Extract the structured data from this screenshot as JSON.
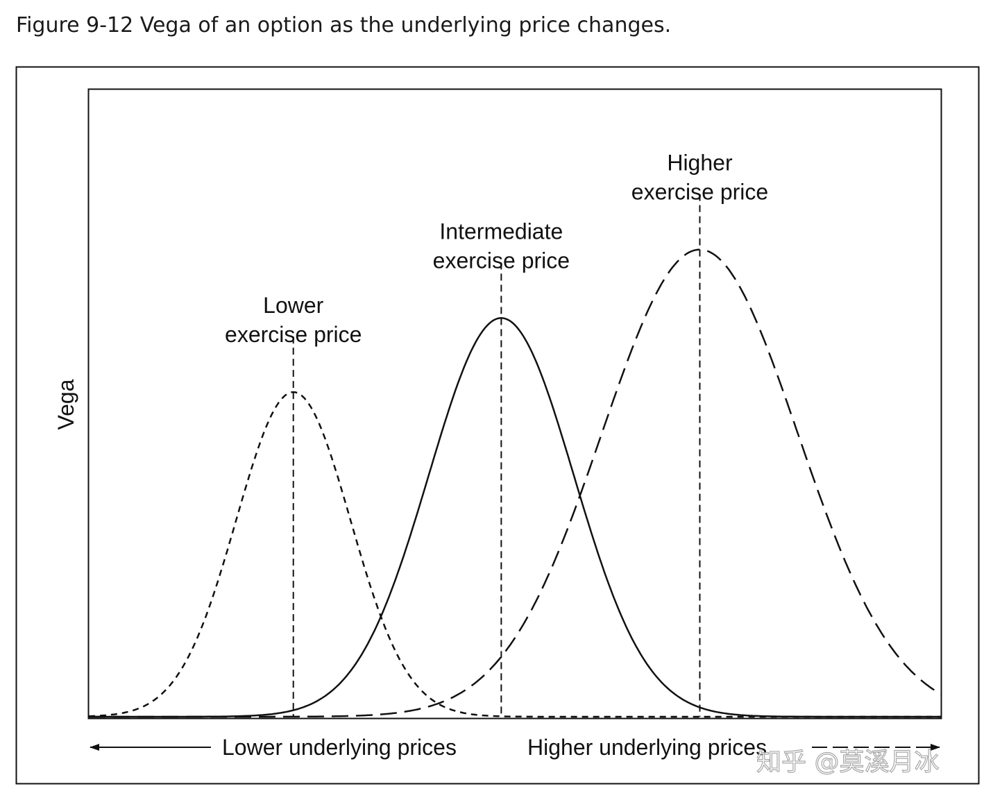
{
  "chart_data": {
    "type": "line",
    "title": "Figure 9-12  Vega of an option as the underlying price changes.",
    "ylabel": "Vega",
    "xlabel_left": "Lower underlying prices",
    "xlabel_right": "Higher underlying prices",
    "xlim": [
      0,
      100
    ],
    "ylim": [
      0,
      100
    ],
    "grid": false,
    "series": [
      {
        "name": "Lower exercise price",
        "label_lines": [
          "Lower",
          "exercise price"
        ],
        "style": "short-dash",
        "center": 24.0,
        "peak": 51.7,
        "spread": 6.7
      },
      {
        "name": "Intermediate exercise price",
        "label_lines": [
          "Intermediate",
          "exercise price"
        ],
        "style": "solid",
        "center": 48.4,
        "peak": 63.5,
        "spread": 8.5
      },
      {
        "name": "Higher exercise price",
        "label_lines": [
          "Higher",
          "exercise price"
        ],
        "style": "long-dash",
        "center": 71.7,
        "peak": 74.4,
        "spread": 11.5
      }
    ]
  },
  "watermark": "知乎 @莫溪月冰"
}
